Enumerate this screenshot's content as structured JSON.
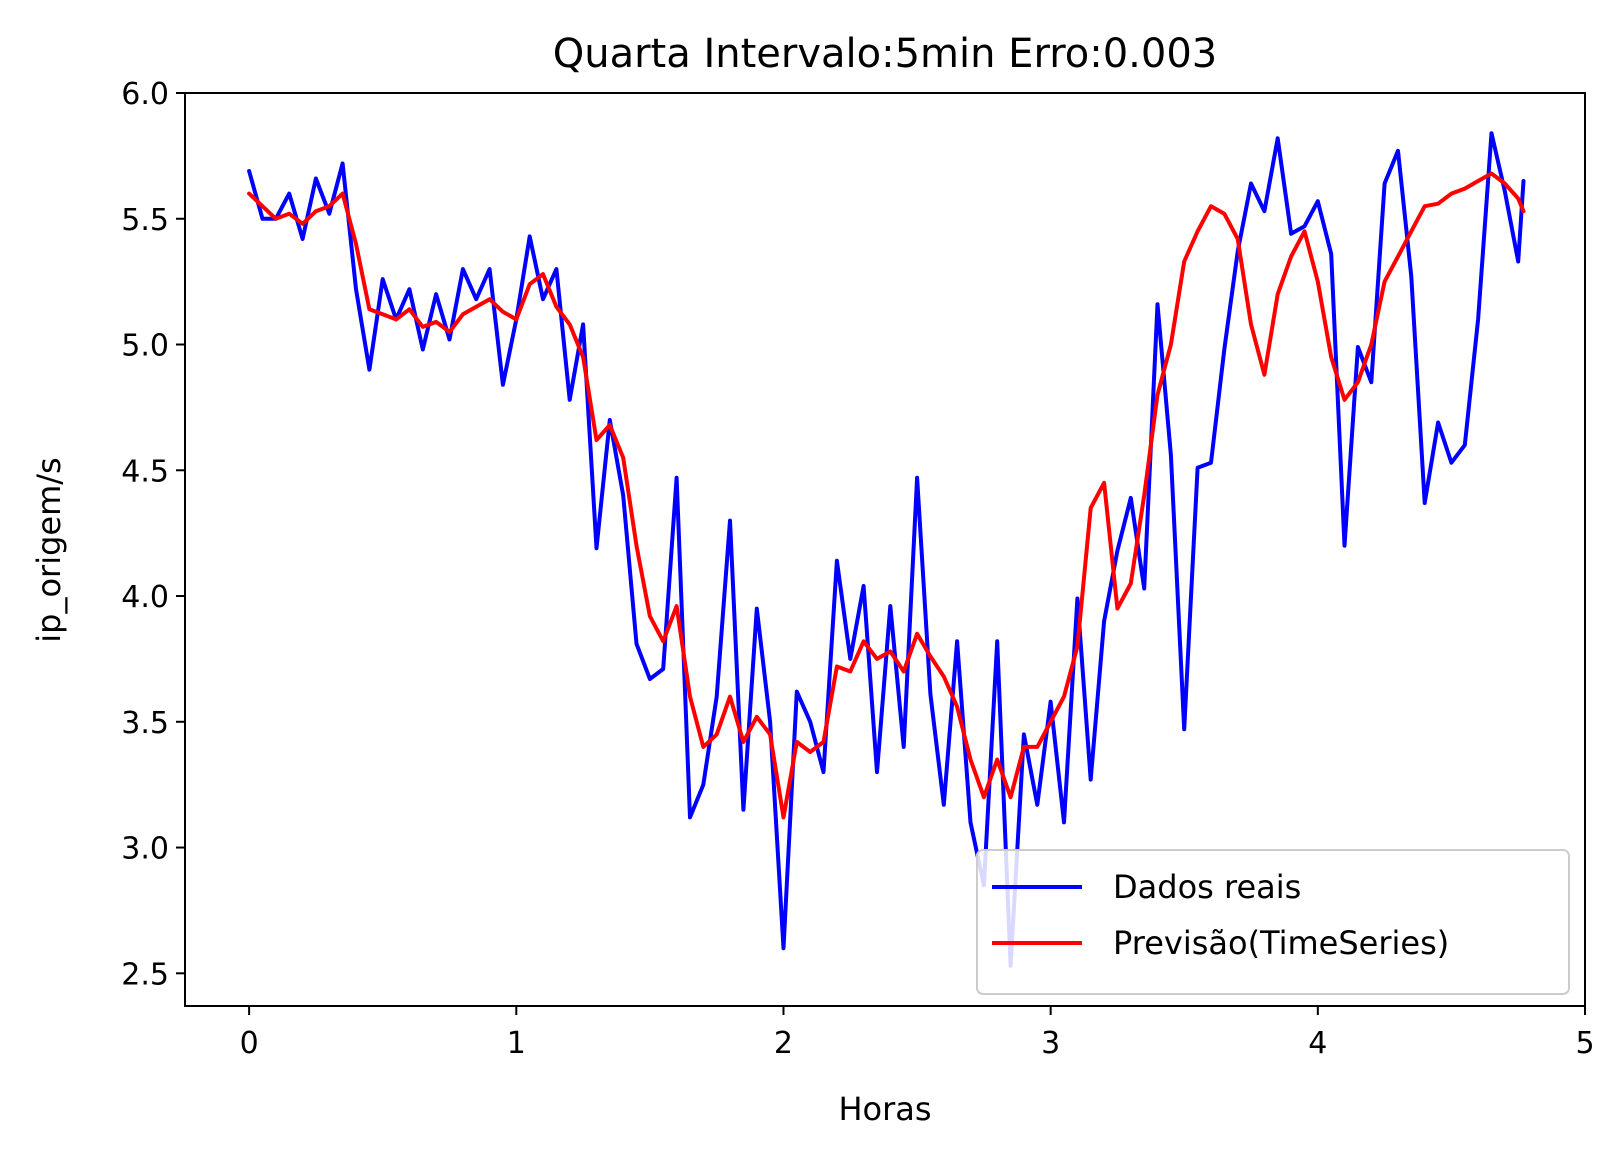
{
  "chart_data": {
    "type": "line",
    "title": "Quarta Intervalo:5min Erro:0.003",
    "xlabel": "Horas",
    "ylabel": "ip_origem/s",
    "xlim": [
      -0.24,
      5.0
    ],
    "ylim": [
      2.37,
      6.0
    ],
    "xticks": [
      0,
      1,
      2,
      3,
      4,
      5
    ],
    "xtick_labels": [
      "0",
      "1",
      "2",
      "3",
      "4",
      "5"
    ],
    "yticks": [
      2.5,
      3.0,
      3.5,
      4.0,
      4.5,
      5.0,
      5.5,
      6.0
    ],
    "ytick_labels": [
      "2.5",
      "3.0",
      "3.5",
      "4.0",
      "4.5",
      "5.0",
      "5.5",
      "6.0"
    ],
    "grid": false,
    "legend_position": "lower-right",
    "series": [
      {
        "name": "Dados reais",
        "color": "#0000ff",
        "x": [
          0.0,
          0.05,
          0.1,
          0.15,
          0.2,
          0.25,
          0.3,
          0.35,
          0.4,
          0.45,
          0.5,
          0.55,
          0.6,
          0.65,
          0.7,
          0.75,
          0.8,
          0.85,
          0.9,
          0.95,
          1.0,
          1.05,
          1.1,
          1.15,
          1.2,
          1.25,
          1.3,
          1.35,
          1.4,
          1.45,
          1.5,
          1.55,
          1.6,
          1.65,
          1.7,
          1.75,
          1.8,
          1.85,
          1.9,
          1.95,
          2.0,
          2.05,
          2.1,
          2.15,
          2.2,
          2.25,
          2.3,
          2.35,
          2.4,
          2.45,
          2.5,
          2.55,
          2.6,
          2.65,
          2.7,
          2.75,
          2.8,
          2.85,
          2.9,
          2.95,
          3.0,
          3.05,
          3.1,
          3.15,
          3.2,
          3.25,
          3.3,
          3.35,
          3.4,
          3.45,
          3.5,
          3.55,
          3.6,
          3.65,
          3.7,
          3.75,
          3.8,
          3.85,
          3.9,
          3.95,
          4.0,
          4.05,
          4.1,
          4.15,
          4.2,
          4.25,
          4.3,
          4.35,
          4.4,
          4.45,
          4.5,
          4.55,
          4.6,
          4.65,
          4.7,
          4.75,
          4.77
        ],
        "values": [
          5.69,
          5.5,
          5.5,
          5.6,
          5.42,
          5.66,
          5.52,
          5.72,
          5.22,
          4.9,
          5.26,
          5.1,
          5.22,
          4.98,
          5.2,
          5.02,
          5.3,
          5.18,
          5.3,
          4.84,
          5.1,
          5.43,
          5.18,
          5.3,
          4.78,
          5.08,
          4.19,
          4.7,
          4.4,
          3.81,
          3.67,
          3.71,
          4.47,
          3.12,
          3.25,
          3.6,
          4.3,
          3.15,
          3.95,
          3.5,
          2.6,
          3.62,
          3.5,
          3.3,
          4.14,
          3.75,
          4.04,
          3.3,
          3.96,
          3.4,
          4.47,
          3.61,
          3.17,
          3.82,
          3.1,
          2.85,
          3.82,
          2.53,
          3.45,
          3.17,
          3.58,
          3.1,
          3.99,
          3.27,
          3.9,
          4.18,
          4.39,
          4.03,
          5.16,
          4.56,
          3.47,
          4.51,
          4.53,
          4.98,
          5.37,
          5.64,
          5.53,
          5.82,
          5.44,
          5.47,
          5.57,
          5.36,
          4.2,
          4.99,
          4.85,
          5.64,
          5.77,
          5.27,
          4.37,
          4.69,
          4.53,
          4.6,
          5.1,
          5.84,
          5.61,
          5.33,
          5.65
        ]
      },
      {
        "name": "Previsão(TimeSeries)",
        "color": "#ff0000",
        "x": [
          0.0,
          0.05,
          0.1,
          0.15,
          0.2,
          0.25,
          0.3,
          0.35,
          0.4,
          0.45,
          0.5,
          0.55,
          0.6,
          0.65,
          0.7,
          0.75,
          0.8,
          0.85,
          0.9,
          0.95,
          1.0,
          1.05,
          1.1,
          1.15,
          1.2,
          1.25,
          1.3,
          1.35,
          1.4,
          1.45,
          1.5,
          1.55,
          1.6,
          1.65,
          1.7,
          1.75,
          1.8,
          1.85,
          1.9,
          1.95,
          2.0,
          2.05,
          2.1,
          2.15,
          2.2,
          2.25,
          2.3,
          2.35,
          2.4,
          2.45,
          2.5,
          2.55,
          2.6,
          2.65,
          2.7,
          2.75,
          2.8,
          2.85,
          2.9,
          2.95,
          3.0,
          3.05,
          3.1,
          3.15,
          3.2,
          3.25,
          3.3,
          3.35,
          3.4,
          3.45,
          3.5,
          3.55,
          3.6,
          3.65,
          3.7,
          3.75,
          3.8,
          3.85,
          3.9,
          3.95,
          4.0,
          4.05,
          4.1,
          4.15,
          4.2,
          4.25,
          4.3,
          4.35,
          4.4,
          4.45,
          4.5,
          4.55,
          4.6,
          4.65,
          4.7,
          4.75,
          4.77
        ],
        "values": [
          5.6,
          5.55,
          5.5,
          5.52,
          5.48,
          5.53,
          5.55,
          5.6,
          5.4,
          5.14,
          5.12,
          5.1,
          5.14,
          5.07,
          5.09,
          5.05,
          5.12,
          5.15,
          5.18,
          5.13,
          5.1,
          5.24,
          5.28,
          5.15,
          5.08,
          4.95,
          4.62,
          4.68,
          4.55,
          4.2,
          3.92,
          3.82,
          3.96,
          3.6,
          3.4,
          3.45,
          3.6,
          3.42,
          3.52,
          3.45,
          3.12,
          3.42,
          3.38,
          3.42,
          3.72,
          3.7,
          3.82,
          3.75,
          3.78,
          3.7,
          3.85,
          3.76,
          3.68,
          3.56,
          3.35,
          3.2,
          3.35,
          3.2,
          3.4,
          3.4,
          3.5,
          3.6,
          3.8,
          4.35,
          4.45,
          3.95,
          4.05,
          4.4,
          4.8,
          5.0,
          5.33,
          5.45,
          5.55,
          5.52,
          5.42,
          5.08,
          4.88,
          5.2,
          5.35,
          5.45,
          5.25,
          4.95,
          4.78,
          4.85,
          5.0,
          5.25,
          5.35,
          5.45,
          5.55,
          5.56,
          5.6,
          5.62,
          5.65,
          5.68,
          5.64,
          5.58,
          5.53
        ]
      }
    ]
  }
}
